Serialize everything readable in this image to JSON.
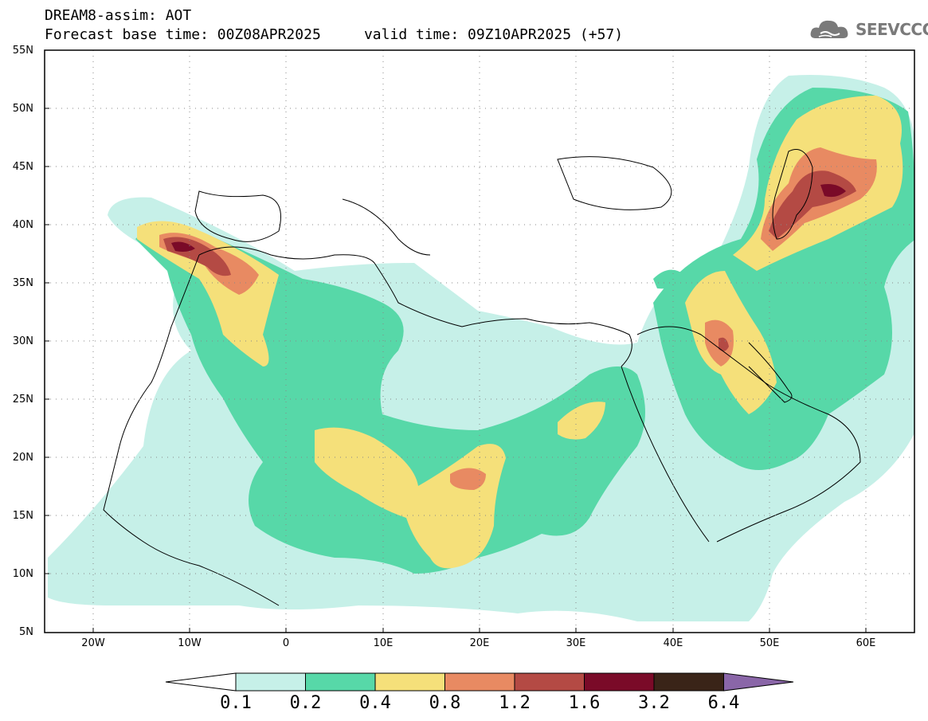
{
  "header": {
    "title_line1": "DREAM8-assim: AOT",
    "title_line2": "Forecast base time: 00Z08APR2025     valid time: 09Z10APR2025 (+57)"
  },
  "logo": {
    "text": "SEEVCCC",
    "icon": "cloud-icon",
    "color": "#7a7a7a"
  },
  "map": {
    "y_axis_labels": [
      "55N",
      "50N",
      "45N",
      "40N",
      "35N",
      "30N",
      "25N",
      "20N",
      "15N",
      "10N",
      "5N"
    ],
    "x_axis_labels": [
      "20W",
      "10W",
      "0",
      "10E",
      "20E",
      "30E",
      "40E",
      "50E",
      "60E"
    ],
    "colorbar": {
      "labels": [
        "0.1",
        "0.2",
        "0.4",
        "0.8",
        "1.2",
        "1.6",
        "3.2",
        "6.4"
      ],
      "colors": [
        "#c6f0e8",
        "#57d8a8",
        "#f5e07a",
        "#e88a62",
        "#b44a44",
        "#7a0a28",
        "#3a2418",
        "#8a66a8"
      ],
      "low_end_color": "#ffffff"
    }
  }
}
